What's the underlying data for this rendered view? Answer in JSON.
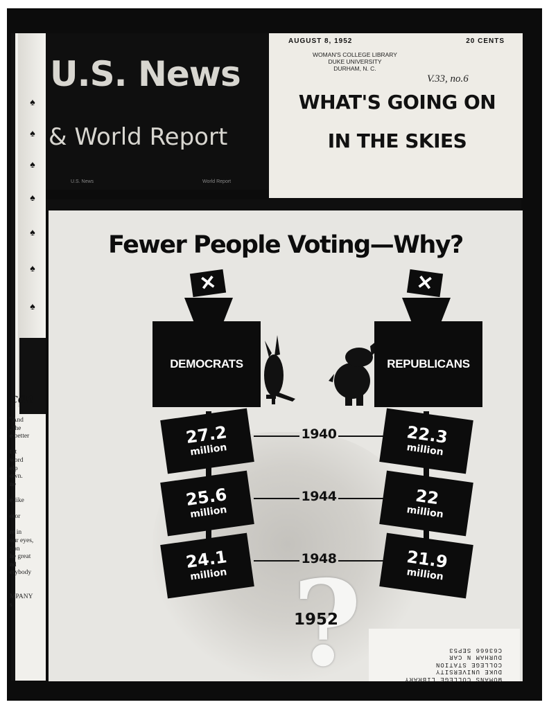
{
  "spine": {
    "word": "can",
    "text_lines": [
      "' And",
      ", the",
      "e better",
      "",
      "t it",
      "word",
      "elp",
      "own.",
      "ne",
      "",
      "e like",
      "",
      "otor",
      "",
      "re in",
      "our eyes,",
      "; on",
      "he great",
      "nd",
      "erybody",
      "",
      "",
      "MPANY",
      "s"
    ]
  },
  "masthead": {
    "line1": "U.S. News",
    "line2": "& World Report",
    "small_left": "U.S. News",
    "small_right": "World Report"
  },
  "header": {
    "date": "AUGUST 8, 1952",
    "price": "20 CENTS",
    "stamp_lines": [
      "WOMAN'S COLLEGE LIBRARY",
      "DUKE UNIVERSITY",
      "DURHAM, N. C."
    ],
    "handwritten": "V.33, no.6",
    "headline": "WHAT'S GOING ON\nIN THE SKIES"
  },
  "cover": {
    "title": "Fewer People Voting—Why?",
    "ballot_mark": "✕",
    "parties": [
      {
        "label": "DEMOCRATS",
        "mascot": "donkey-icon"
      },
      {
        "label": "REPUBLICANS",
        "mascot": "elephant-icon"
      }
    ],
    "unit": "million",
    "years": [
      "1940",
      "1944",
      "1948"
    ],
    "democrats": [
      "27.2",
      "25.6",
      "24.1"
    ],
    "republicans": [
      "22.3",
      "22",
      "21.9"
    ],
    "question_year": "1952",
    "question_mark": "?",
    "library_stamp": [
      "WOMANS COLLEGE LIBRARY",
      "DUKE UNIVERSITY",
      "COLLEGE STATION",
      "DURHAM N CAR",
      "C63666 SEP53"
    ]
  }
}
